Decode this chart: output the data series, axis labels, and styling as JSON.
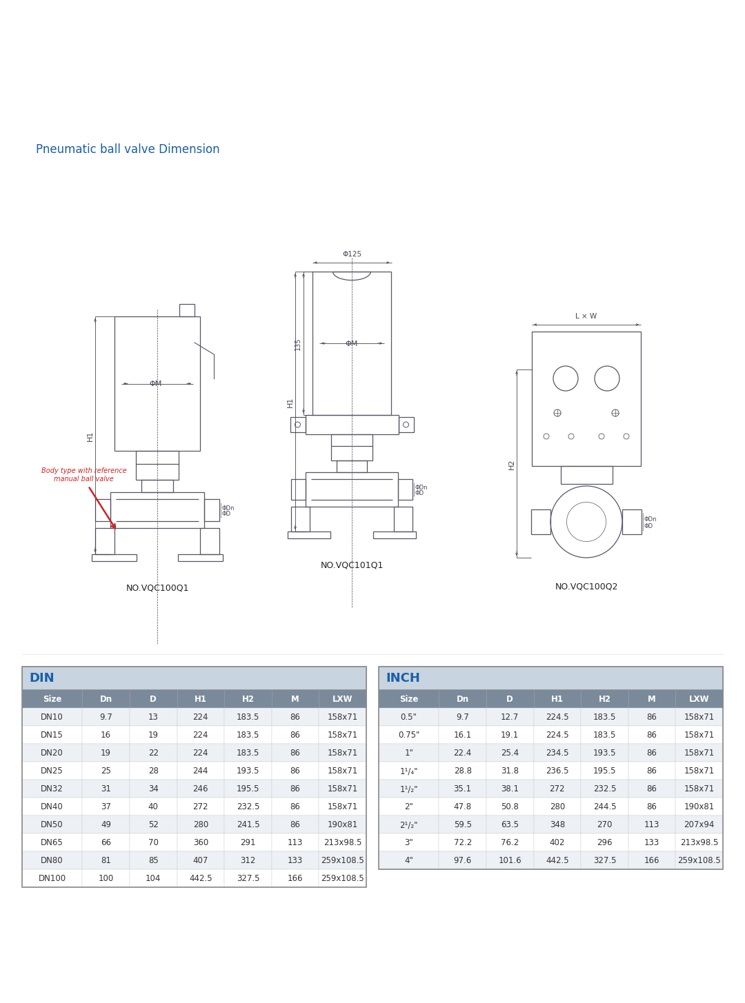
{
  "title": "Pneumatic ball valve Dimension",
  "title_color": "#1a5fa8",
  "title_fontsize": 12,
  "background_color": "#ffffff",
  "diagram_labels": {
    "vqc100q1": "NO.VQC100Q1",
    "vqc101q1": "NO.VQC101Q1",
    "vqc100q2": "NO.VQC100Q2"
  },
  "din_table": {
    "header_bg": "#c8d4e0",
    "header_label_color": "#1a5fa8",
    "header_label": "DIN",
    "col_header_bg": "#7a8a9a",
    "col_header_color": "#ffffff",
    "row_bg_even": "#edf0f5",
    "row_bg_odd": "#ffffff",
    "columns": [
      "Size",
      "Dn",
      "D",
      "H1",
      "H2",
      "M",
      "LXW"
    ],
    "rows": [
      [
        "DN10",
        "9.7",
        "13",
        "224",
        "183.5",
        "86",
        "158x71"
      ],
      [
        "DN15",
        "16",
        "19",
        "224",
        "183.5",
        "86",
        "158x71"
      ],
      [
        "DN20",
        "19",
        "22",
        "224",
        "183.5",
        "86",
        "158x71"
      ],
      [
        "DN25",
        "25",
        "28",
        "244",
        "193.5",
        "86",
        "158x71"
      ],
      [
        "DN32",
        "31",
        "34",
        "246",
        "195.5",
        "86",
        "158x71"
      ],
      [
        "DN40",
        "37",
        "40",
        "272",
        "232.5",
        "86",
        "158x71"
      ],
      [
        "DN50",
        "49",
        "52",
        "280",
        "241.5",
        "86",
        "190x81"
      ],
      [
        "DN65",
        "66",
        "70",
        "360",
        "291",
        "113",
        "213x98.5"
      ],
      [
        "DN80",
        "81",
        "85",
        "407",
        "312",
        "133",
        "259x108.5"
      ],
      [
        "DN100",
        "100",
        "104",
        "442.5",
        "327.5",
        "166",
        "259x108.5"
      ]
    ]
  },
  "inch_table": {
    "header_bg": "#c8d4e0",
    "header_label_color": "#1a5fa8",
    "header_label": "INCH",
    "col_header_bg": "#7a8a9a",
    "col_header_color": "#ffffff",
    "row_bg_even": "#edf0f5",
    "row_bg_odd": "#ffffff",
    "columns": [
      "Size",
      "Dn",
      "D",
      "H1",
      "H2",
      "M",
      "LXW"
    ],
    "rows": [
      [
        "0.5\"",
        "9.7",
        "12.7",
        "224.5",
        "183.5",
        "86",
        "158x71"
      ],
      [
        "0.75\"",
        "16.1",
        "19.1",
        "224.5",
        "183.5",
        "86",
        "158x71"
      ],
      [
        "1\"",
        "22.4",
        "25.4",
        "234.5",
        "193.5",
        "86",
        "158x71"
      ],
      [
        "1¹/₄\"",
        "28.8",
        "31.8",
        "236.5",
        "195.5",
        "86",
        "158x71"
      ],
      [
        "1¹/₂\"",
        "35.1",
        "38.1",
        "272",
        "232.5",
        "86",
        "158x71"
      ],
      [
        "2\"",
        "47.8",
        "50.8",
        "280",
        "244.5",
        "86",
        "190x81"
      ],
      [
        "2¹/₂\"",
        "59.5",
        "63.5",
        "348",
        "270",
        "113",
        "207x94"
      ],
      [
        "3\"",
        "72.2",
        "76.2",
        "402",
        "296",
        "133",
        "213x98.5"
      ],
      [
        "4\"",
        "97.6",
        "101.6",
        "442.5",
        "327.5",
        "166",
        "259x108.5"
      ]
    ]
  },
  "annotation_text": "Body type with reference\nmanual ball valve",
  "annotation_color": "#cc2222",
  "line_color": "#555566",
  "dim_color": "#444455"
}
